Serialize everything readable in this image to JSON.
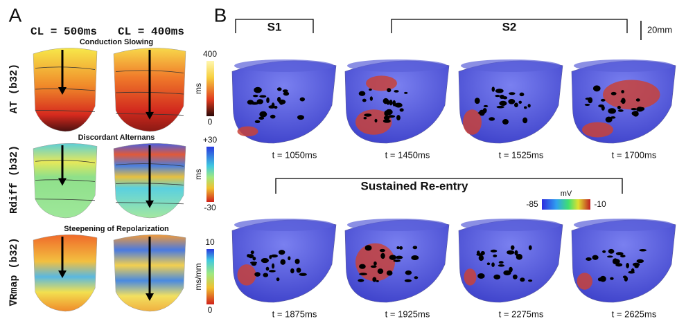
{
  "panel_a": {
    "label": "A",
    "columns": [
      "CL = 500ms",
      "CL = 400ms"
    ],
    "rows": [
      {
        "title": "Conduction Slowing",
        "ylabel": "AT (b32)",
        "colorbar": {
          "max": "400",
          "unit": "ms",
          "min": "0"
        }
      },
      {
        "title": "Discordant Alternans",
        "ylabel": "Rdiff (b32)",
        "colorbar": {
          "max": "+30",
          "unit": "ms",
          "min": "-30"
        }
      },
      {
        "title": "Steepening of Repolarization",
        "ylabel": "∇Rmap (b32)",
        "colorbar": {
          "max": "10",
          "unit": "ms/mm",
          "min": "0"
        }
      }
    ]
  },
  "panel_b": {
    "label": "B",
    "brackets": [
      "S1",
      "S2"
    ],
    "scale": "20mm",
    "frames_top": [
      "t = 1050ms",
      "t = 1450ms",
      "t = 1525ms",
      "t = 1700ms"
    ],
    "reentry_title": "Sustained Re-entry",
    "colorbar": {
      "unit": "mV",
      "min": "-85",
      "max": "-10"
    },
    "frames_bottom": [
      "t = 1875ms",
      "t = 1925ms",
      "t = 2275ms",
      "t = 2625ms"
    ]
  }
}
